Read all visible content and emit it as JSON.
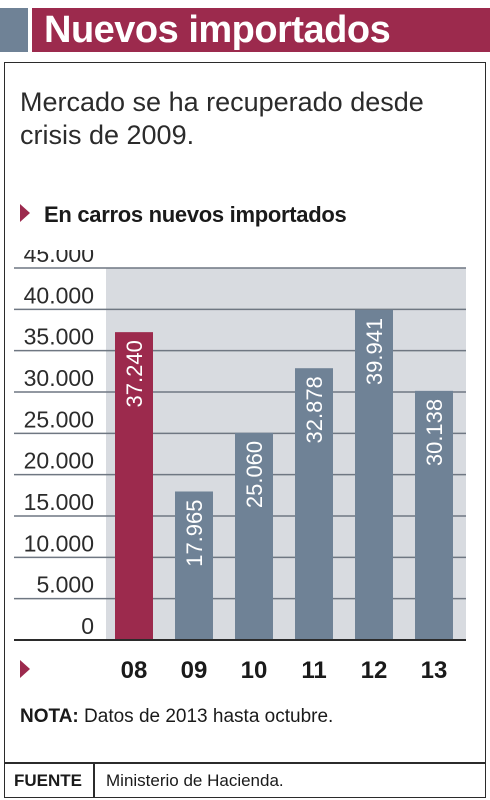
{
  "header": {
    "title": "Nuevos importados"
  },
  "subtitle": "Mercado se ha recuperado desde crisis de 2009.",
  "chart_data": {
    "type": "bar",
    "title": "En carros nuevos importados",
    "categories": [
      "08",
      "09",
      "10",
      "11",
      "12",
      "13"
    ],
    "values": [
      37240,
      17965,
      25060,
      32878,
      39941,
      30138
    ],
    "value_labels": [
      "37.240",
      "17.965",
      "25.060",
      "32.878",
      "39.941",
      "30.138"
    ],
    "yticks": [
      "0",
      "5.000",
      "10.000",
      "15.000",
      "20.000",
      "25.000",
      "30.000",
      "35.000",
      "40.000",
      "45.000"
    ],
    "ylim": [
      0,
      45000
    ],
    "grid": true,
    "colors": {
      "highlight": "#9c2a4d",
      "bar": "#6f8296",
      "plot_bg": "#d8dbe0",
      "grid": "#ffffff"
    },
    "highlight_index": 0
  },
  "note": {
    "label": "NOTA:",
    "text": "Datos de 2013 hasta octubre."
  },
  "source": {
    "label": "FUENTE",
    "text": "Ministerio de Hacienda."
  }
}
